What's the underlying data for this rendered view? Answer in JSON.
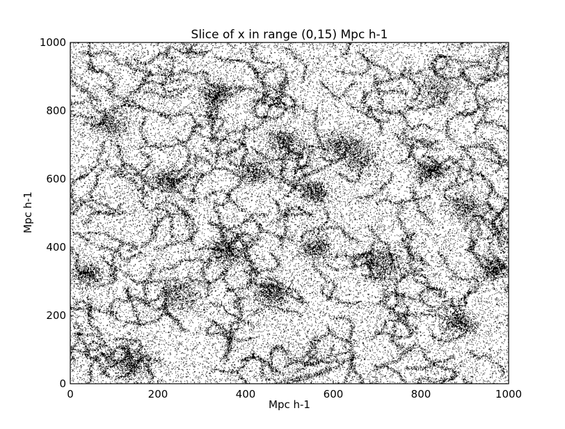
{
  "chart_data": {
    "type": "scatter",
    "title": "Slice of x in range (0,15) Mpc h-1",
    "xlabel": "Mpc h-1",
    "ylabel": "Mpc h-1",
    "xlim": [
      0,
      1000
    ],
    "ylim": [
      0,
      1000
    ],
    "xticks": [
      0,
      200,
      400,
      600,
      800,
      1000
    ],
    "yticks": [
      0,
      200,
      400,
      600,
      800,
      1000
    ],
    "grid": false,
    "marker_color": "#000000",
    "point_distribution": {
      "description_value": "dense particle slice with cosmic-web clustering",
      "approx_visible_points": 52000,
      "clusters": [
        {
          "x": 490,
          "y": 710,
          "spread": 22
        },
        {
          "x": 560,
          "y": 395,
          "spread": 20
        },
        {
          "x": 660,
          "y": 660,
          "spread": 25
        },
        {
          "x": 820,
          "y": 625,
          "spread": 18
        },
        {
          "x": 885,
          "y": 180,
          "spread": 20
        },
        {
          "x": 840,
          "y": 860,
          "spread": 28
        },
        {
          "x": 615,
          "y": 700,
          "spread": 22
        },
        {
          "x": 355,
          "y": 380,
          "spread": 22
        },
        {
          "x": 220,
          "y": 595,
          "spread": 22
        },
        {
          "x": 95,
          "y": 760,
          "spread": 26
        },
        {
          "x": 420,
          "y": 620,
          "spread": 20
        },
        {
          "x": 720,
          "y": 350,
          "spread": 25
        },
        {
          "x": 965,
          "y": 335,
          "spread": 18
        },
        {
          "x": 250,
          "y": 260,
          "spread": 25
        },
        {
          "x": 150,
          "y": 60,
          "spread": 25
        },
        {
          "x": 560,
          "y": 560,
          "spread": 18
        },
        {
          "x": 330,
          "y": 850,
          "spread": 22
        },
        {
          "x": 455,
          "y": 265,
          "spread": 20
        },
        {
          "x": 40,
          "y": 320,
          "spread": 20
        },
        {
          "x": 900,
          "y": 520,
          "spread": 24
        }
      ]
    }
  }
}
